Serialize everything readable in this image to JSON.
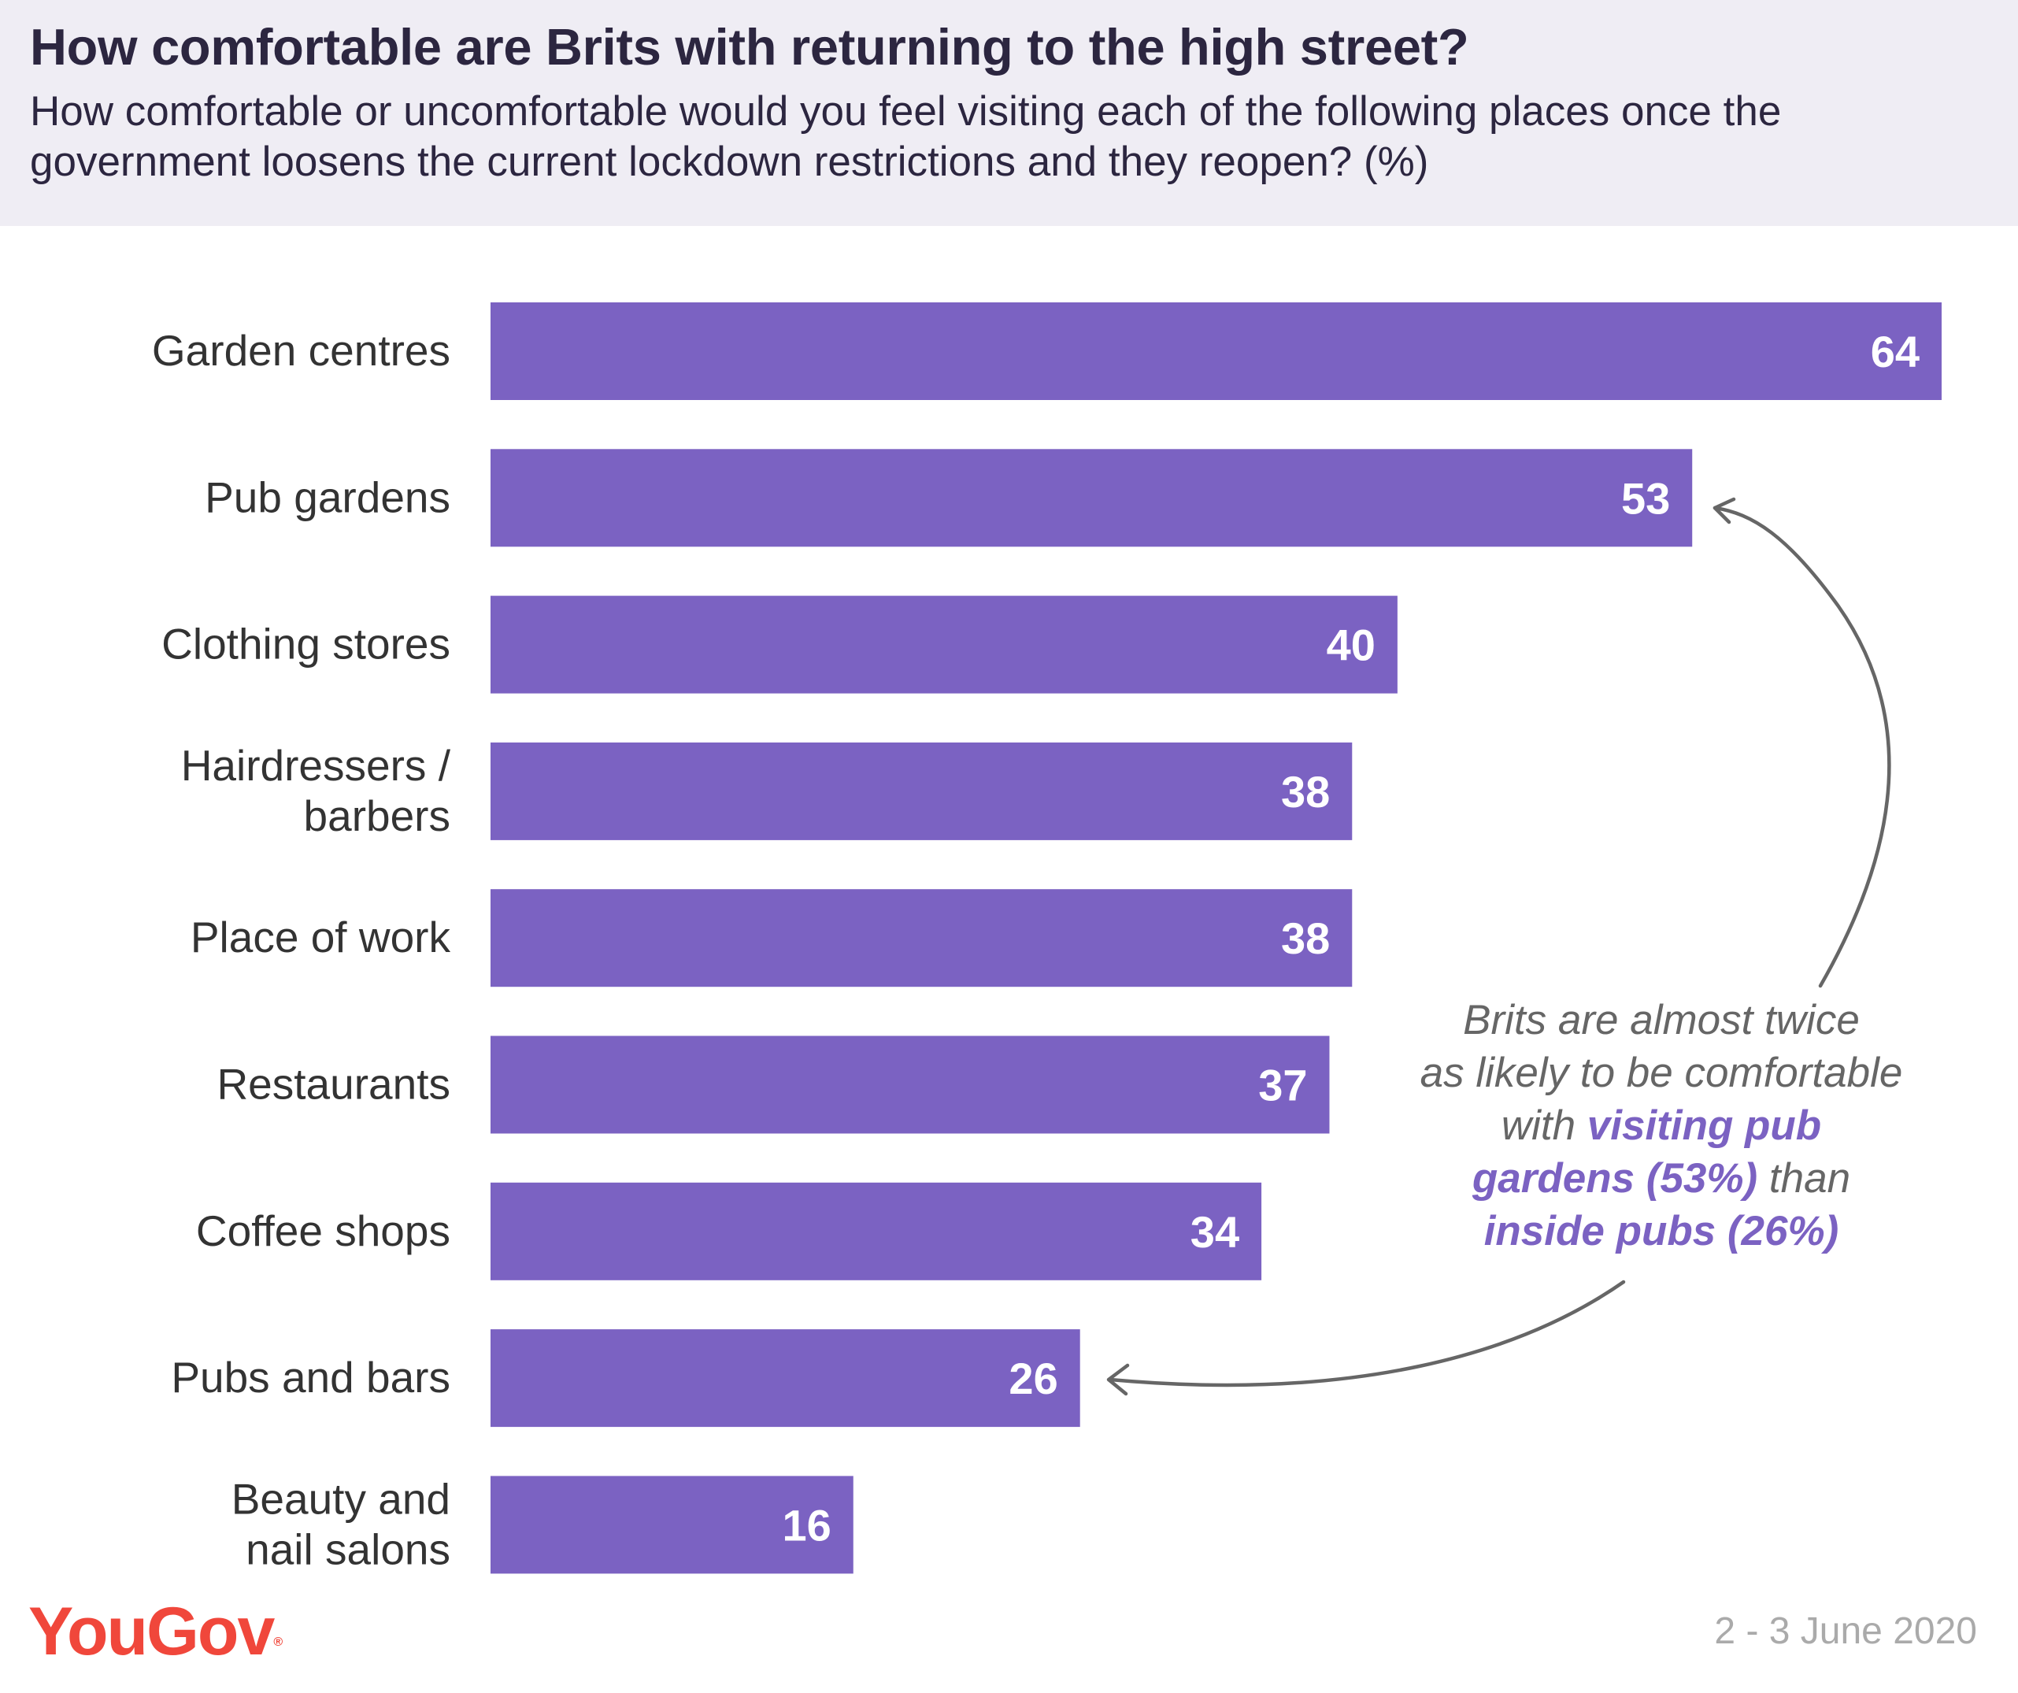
{
  "header": {
    "title": "How comfortable are Brits with returning to the high street?",
    "subtitle": "How comfortable or uncomfortable would you feel visiting each of the following places once the government loosens the current lockdown restrictions and they reopen? (%)"
  },
  "chart_data": {
    "type": "bar",
    "orientation": "horizontal",
    "title": "How comfortable are Brits with returning to the high street?",
    "subtitle": "How comfortable or uncomfortable would you feel visiting each of the following places once the government loosens the current lockdown restrictions and they reopen? (%)",
    "categories": [
      [
        "Garden centres"
      ],
      [
        "Pub gardens"
      ],
      [
        "Clothing stores"
      ],
      [
        "Hairdressers /",
        "barbers"
      ],
      [
        "Place of work"
      ],
      [
        "Restaurants"
      ],
      [
        "Coffee shops"
      ],
      [
        "Pubs and bars"
      ],
      [
        "Beauty and",
        "nail salons"
      ]
    ],
    "values": [
      64,
      53,
      40,
      38,
      38,
      37,
      34,
      26,
      16
    ],
    "xlim": [
      0,
      64
    ],
    "grid": false,
    "legend": "none",
    "bar_color": "#7b62c2"
  },
  "annotation": {
    "line1": "Brits are almost twice",
    "line2": "as likely to be comfortable",
    "line3_a": "with ",
    "line3_b": "visiting pub",
    "line4_a": "gardens (53%)",
    "line4_b": " than",
    "line5": "inside pubs (26%)"
  },
  "footer": {
    "logo": "YouGov",
    "logo_mark": "®",
    "date": "2 - 3 June 2020"
  },
  "colors": {
    "bar": "#7b62c2",
    "header_bg": "#efedf4",
    "title": "#2c2640",
    "highlight": "#7b62c2",
    "arrow": "#666666",
    "logo": "#f0473b"
  }
}
